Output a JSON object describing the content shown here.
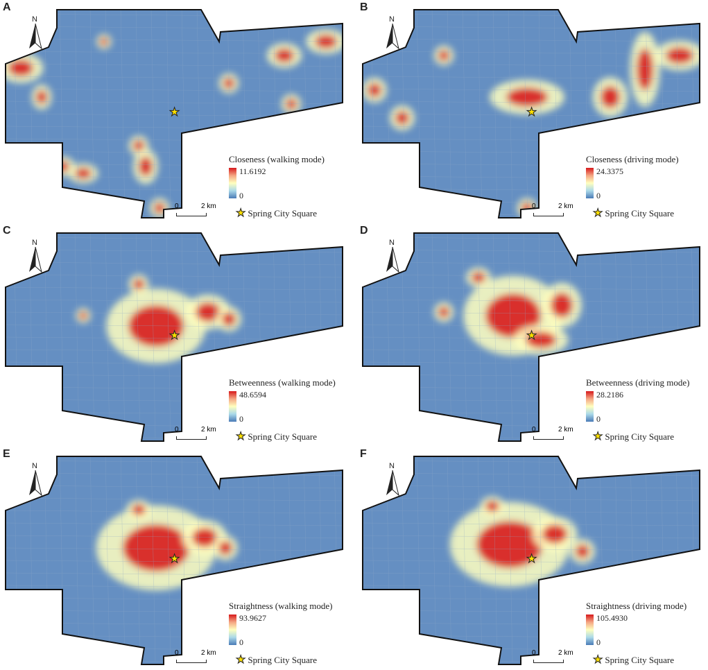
{
  "north_label": "N",
  "scale": {
    "start": "0",
    "end": "2 km"
  },
  "landmark": "Spring City Square",
  "colors": {
    "high": "#d7191c",
    "mid": "#ffffbf",
    "low": "#4a7bb7"
  },
  "panels": [
    {
      "letter": "A",
      "title": "Closeness (walking mode)",
      "max": "11.6192",
      "min": "0"
    },
    {
      "letter": "B",
      "title": "Closeness (driving mode)",
      "max": "24.3375",
      "min": "0"
    },
    {
      "letter": "C",
      "title": "Betweenness (walking mode)",
      "max": "48.6594",
      "min": "0"
    },
    {
      "letter": "D",
      "title": "Betweenness (driving mode)",
      "max": "28.2186",
      "min": "0"
    },
    {
      "letter": "E",
      "title": "Straightness (walking mode)",
      "max": "93.9627",
      "min": "0"
    },
    {
      "letter": "F",
      "title": "Straightness (driving mode)",
      "max": "105.4930",
      "min": "0"
    }
  ]
}
